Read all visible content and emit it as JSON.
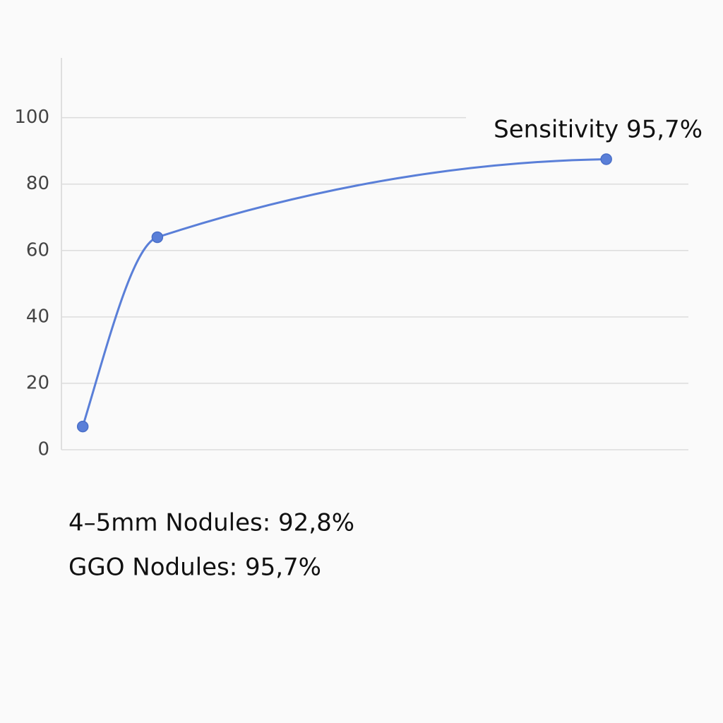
{
  "chart_data": {
    "type": "line",
    "x": [
      3.4,
      15.3,
      86.9
    ],
    "xlim": [
      0,
      100
    ],
    "series": [
      {
        "name": "Sensitivity",
        "color": "#5a7fd8",
        "values": [
          7,
          64,
          87.5
        ]
      }
    ],
    "ylim": [
      0,
      118
    ],
    "yticks": [
      0,
      20,
      40,
      60,
      80,
      100
    ],
    "grid": true,
    "annotations": [
      "Sensitivity 95,7%",
      "4–5mm Nodules: 92,8%",
      "GGO Nodules: 95,7%"
    ]
  }
}
